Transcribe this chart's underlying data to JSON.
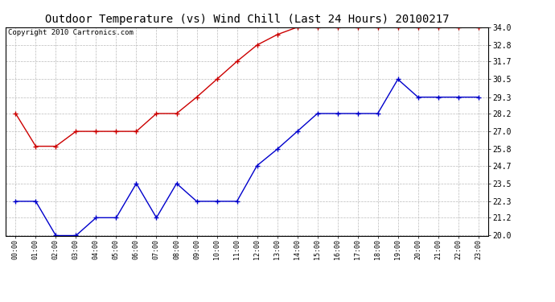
{
  "title": "Outdoor Temperature (vs) Wind Chill (Last 24 Hours) 20100217",
  "copyright": "Copyright 2010 Cartronics.com",
  "x_labels": [
    "00:00",
    "01:00",
    "02:00",
    "03:00",
    "04:00",
    "05:00",
    "06:00",
    "07:00",
    "08:00",
    "09:00",
    "10:00",
    "11:00",
    "12:00",
    "13:00",
    "14:00",
    "15:00",
    "16:00",
    "17:00",
    "18:00",
    "19:00",
    "20:00",
    "21:00",
    "22:00",
    "23:00"
  ],
  "temp_outdoor": [
    22.3,
    22.3,
    20.0,
    20.0,
    21.2,
    21.2,
    23.5,
    21.2,
    23.5,
    22.3,
    22.3,
    22.3,
    24.7,
    25.8,
    27.0,
    28.2,
    28.2,
    28.2,
    28.2,
    30.5,
    29.3,
    29.3,
    29.3,
    29.3
  ],
  "wind_chill": [
    28.2,
    26.0,
    26.0,
    27.0,
    27.0,
    27.0,
    27.0,
    28.2,
    28.2,
    29.3,
    30.5,
    31.7,
    32.8,
    33.5,
    34.0,
    34.0,
    34.0,
    34.0,
    34.0,
    34.0,
    34.0,
    34.0,
    34.0,
    34.0
  ],
  "ylim": [
    20.0,
    34.0
  ],
  "yticks": [
    20.0,
    21.2,
    22.3,
    23.5,
    24.7,
    25.8,
    27.0,
    28.2,
    29.3,
    30.5,
    31.7,
    32.8,
    34.0
  ],
  "outdoor_color": "#0000cc",
  "windchill_color": "#cc0000",
  "bg_color": "#ffffff",
  "plot_bg_color": "#ffffff",
  "grid_color": "#bbbbbb",
  "title_fontsize": 10,
  "copyright_fontsize": 6.5
}
